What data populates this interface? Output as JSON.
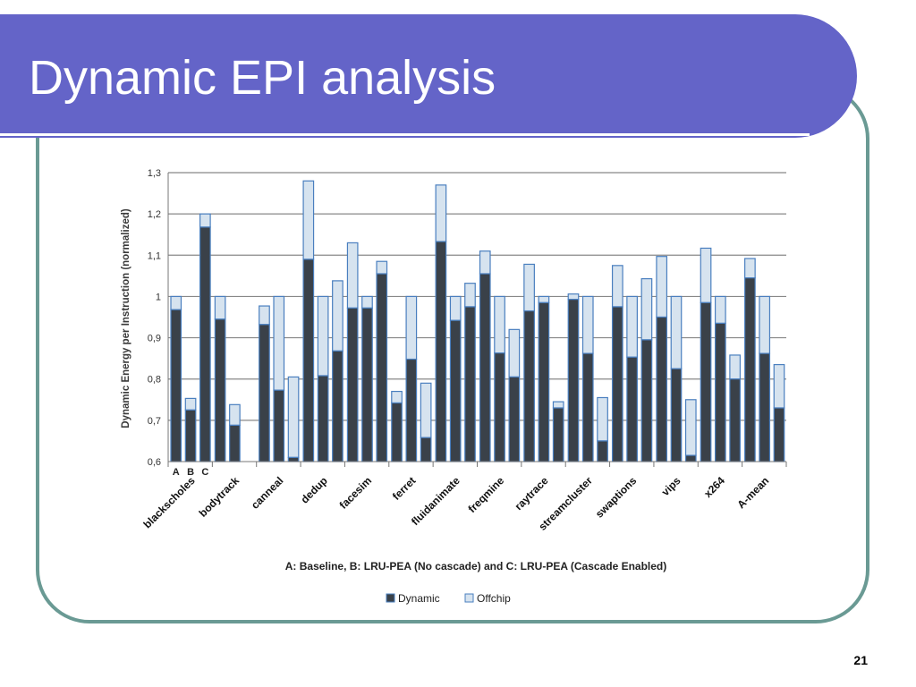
{
  "slide": {
    "title": "Dynamic EPI analysis",
    "page_number": "21"
  },
  "colors": {
    "title_bar": "#6464c8",
    "frame_border": "#6a9a94",
    "dynamic": "#3a4149",
    "offchip": "#d6e3ef",
    "bar_outline": "#4a7fbf",
    "grid": "#888888"
  },
  "chart_data": {
    "type": "bar",
    "stacked": true,
    "grouped": true,
    "ylabel": "Dynamic Energy per Instruction (normalized)",
    "xlabel": "",
    "ylim": [
      0.6,
      1.3
    ],
    "yticks": [
      "0,6",
      "0,7",
      "0,8",
      "0,9",
      "1",
      "1,1",
      "1,2",
      "1,3"
    ],
    "grid": true,
    "sub_labels": [
      "A",
      "B",
      "C"
    ],
    "caption": "A: Baseline, B: LRU-PEA (No cascade) and C: LRU-PEA (Cascade Enabled)",
    "legend": {
      "position": "bottom",
      "entries": [
        "Dynamic",
        "Offchip"
      ]
    },
    "categories": [
      "blackscholes",
      "bodytrack",
      "canneal",
      "dedup",
      "facesim",
      "ferret",
      "fluidanimate",
      "freqmine",
      "raytrace",
      "streamcluster",
      "swaptions",
      "vips",
      "x264",
      "A-mean"
    ],
    "series": [
      {
        "name": "Dynamic",
        "values": [
          [
            0.968,
            0.725,
            1.168
          ],
          [
            0.945,
            0.688,
            null
          ],
          [
            0.932,
            0.773,
            0.61
          ],
          [
            1.09,
            0.808,
            0.868
          ],
          [
            0.972,
            0.972,
            1.055
          ],
          [
            0.742,
            0.848,
            0.658
          ],
          [
            1.133,
            0.942,
            0.975
          ],
          [
            1.055,
            0.863,
            0.805
          ],
          [
            0.965,
            0.985,
            0.73
          ],
          [
            0.993,
            0.862,
            0.65
          ],
          [
            0.975,
            0.853,
            0.895
          ],
          [
            0.95,
            0.825,
            0.615
          ],
          [
            0.985,
            0.935,
            0.8
          ],
          [
            1.045,
            0.862,
            0.73
          ]
        ]
      },
      {
        "name": "Offchip",
        "values": [
          [
            0.032,
            0.028,
            0.032
          ],
          [
            0.055,
            0.05,
            null
          ],
          [
            0.045,
            0.227,
            0.195
          ],
          [
            0.19,
            0.192,
            0.17
          ],
          [
            0.158,
            0.028,
            0.03
          ],
          [
            0.028,
            0.152,
            0.132
          ],
          [
            0.137,
            0.058,
            0.057
          ],
          [
            0.055,
            0.137,
            0.115
          ],
          [
            0.113,
            0.015,
            0.015
          ],
          [
            0.013,
            0.138,
            0.105
          ],
          [
            0.1,
            0.147,
            0.148
          ],
          [
            0.147,
            0.175,
            0.135
          ],
          [
            0.132,
            0.065,
            0.058
          ],
          [
            0.047,
            0.138,
            0.105
          ]
        ]
      }
    ]
  }
}
